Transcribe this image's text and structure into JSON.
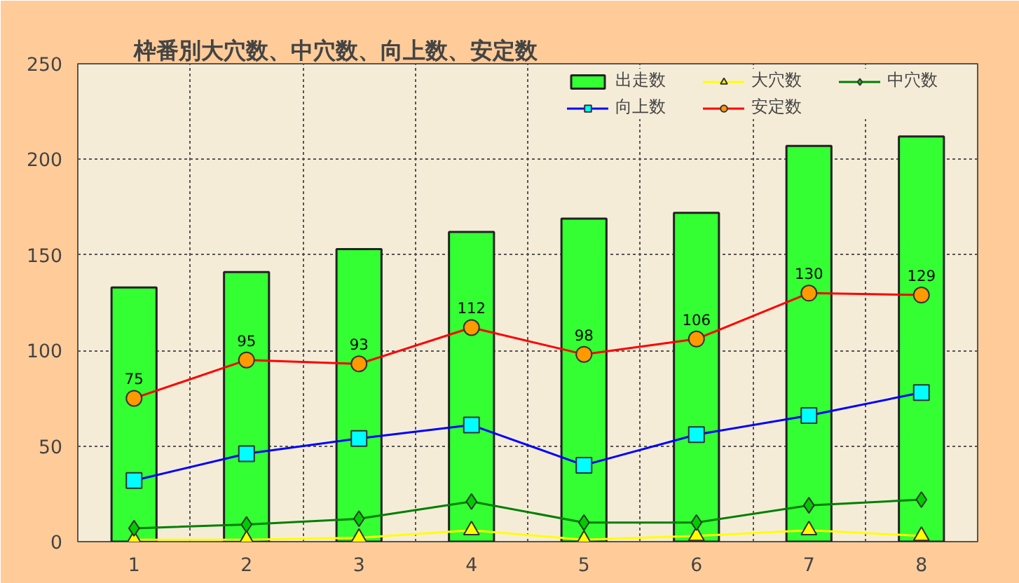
{
  "chart_data": {
    "type": "bar",
    "title": "枠番別大穴数、中穴数、向上数、安定数",
    "categories": [
      "1",
      "2",
      "3",
      "4",
      "5",
      "6",
      "7",
      "8"
    ],
    "series": [
      {
        "name": "出走数",
        "color": "#33ff33",
        "values": [
          133,
          141,
          153,
          162,
          169,
          172,
          207,
          212
        ]
      },
      {
        "name": "大穴数",
        "type": "line",
        "color": "#ffff00",
        "marker": "triangle",
        "values": [
          1,
          1,
          2,
          6,
          1,
          3,
          6,
          3
        ]
      },
      {
        "name": "中穴数",
        "type": "line",
        "color": "#008000",
        "marker": "diamond",
        "values": [
          7,
          9,
          12,
          21,
          10,
          10,
          19,
          22
        ]
      },
      {
        "name": "向上数",
        "type": "line",
        "color": "#0000ff",
        "marker": "square",
        "values": [
          32,
          46,
          54,
          61,
          40,
          56,
          66,
          78
        ]
      },
      {
        "name": "安定数",
        "type": "line",
        "color": "#ff0000",
        "marker": "circle",
        "values": [
          75,
          95,
          93,
          112,
          98,
          106,
          130,
          129
        ],
        "value_labels": [
          "75",
          "95",
          "93",
          "112",
          "98",
          "106",
          "130",
          "129"
        ]
      }
    ],
    "ylim": [
      0,
      250
    ],
    "yticks": [
      0,
      50,
      100,
      150,
      200,
      250
    ],
    "grid": true,
    "legend": "top right"
  }
}
